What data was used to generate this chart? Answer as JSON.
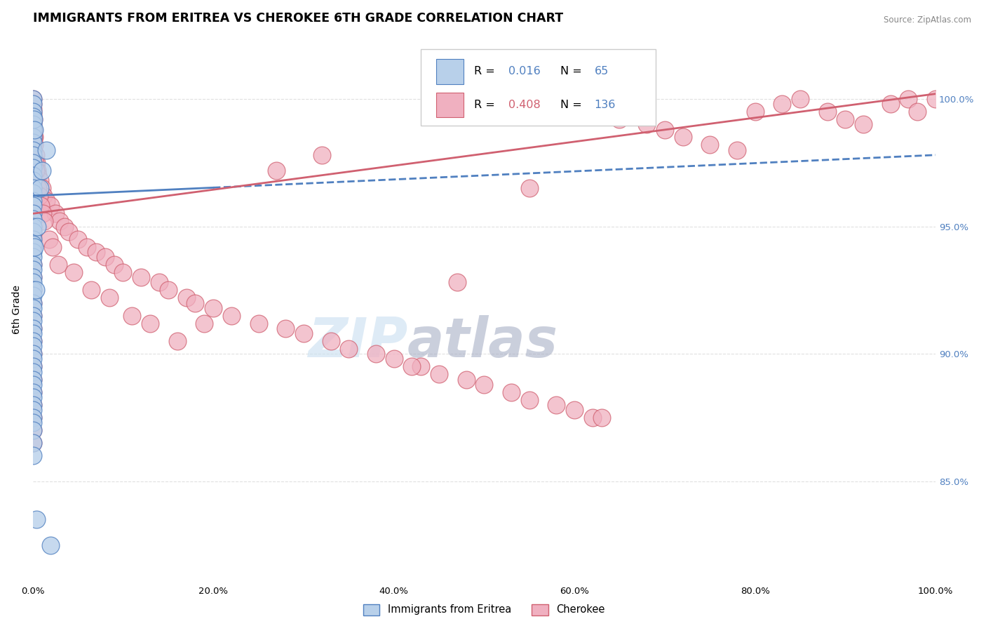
{
  "title": "IMMIGRANTS FROM ERITREA VS CHEROKEE 6TH GRADE CORRELATION CHART",
  "source": "Source: ZipAtlas.com",
  "xlabel_blue": "Immigrants from Eritrea",
  "xlabel_pink": "Cherokee",
  "ylabel": "6th Grade",
  "xlim": [
    0.0,
    100.0
  ],
  "ylim": [
    81.0,
    102.5
  ],
  "yticks": [
    85.0,
    90.0,
    95.0,
    100.0
  ],
  "blue_R": 0.016,
  "blue_N": 65,
  "pink_R": 0.408,
  "pink_N": 136,
  "blue_face": "#b8d0ea",
  "blue_edge": "#5080c0",
  "pink_face": "#f0b0c0",
  "pink_edge": "#d06070",
  "blue_line_color": "#5080c0",
  "pink_line_color": "#d06070",
  "grid_color": "#e0e0e0",
  "background": "#ffffff",
  "blue_scatter_x": [
    0.0,
    0.0,
    0.0,
    0.0,
    0.0,
    0.0,
    0.0,
    0.0,
    0.0,
    0.0,
    0.0,
    0.0,
    0.0,
    0.0,
    0.0,
    0.0,
    0.0,
    0.0,
    0.0,
    0.0,
    0.0,
    0.0,
    0.0,
    0.0,
    0.0,
    0.0,
    0.0,
    0.0,
    0.0,
    0.0,
    0.0,
    0.0,
    0.0,
    0.0,
    0.0,
    0.0,
    0.0,
    0.0,
    0.0,
    0.0,
    0.0,
    0.0,
    0.0,
    0.0,
    0.0,
    0.0,
    0.0,
    0.0,
    0.0,
    0.0,
    0.0,
    0.0,
    0.0,
    0.0,
    0.0,
    0.2,
    0.3,
    0.5,
    0.8,
    1.0,
    1.5,
    2.0,
    0.1,
    0.15,
    0.4
  ],
  "blue_scatter_y": [
    100.0,
    99.8,
    99.5,
    99.3,
    99.0,
    98.8,
    98.5,
    98.3,
    98.0,
    97.8,
    97.5,
    97.3,
    97.0,
    96.8,
    96.5,
    96.3,
    96.0,
    95.8,
    95.5,
    95.3,
    95.0,
    94.8,
    94.5,
    94.3,
    94.0,
    93.8,
    93.5,
    93.3,
    93.0,
    92.8,
    92.5,
    92.3,
    92.0,
    91.8,
    91.5,
    91.3,
    91.0,
    90.8,
    90.5,
    90.3,
    90.0,
    89.8,
    89.5,
    89.3,
    89.0,
    88.8,
    88.5,
    88.3,
    88.0,
    87.8,
    87.5,
    87.3,
    87.0,
    86.5,
    86.0,
    94.2,
    92.5,
    95.0,
    96.5,
    97.2,
    98.0,
    82.5,
    99.2,
    98.8,
    83.5
  ],
  "pink_scatter_x": [
    0.0,
    0.0,
    0.0,
    0.0,
    0.0,
    0.0,
    0.0,
    0.0,
    0.0,
    0.0,
    0.0,
    0.0,
    0.0,
    0.0,
    0.0,
    0.0,
    0.0,
    0.0,
    0.0,
    0.0,
    0.0,
    0.0,
    0.0,
    0.0,
    0.0,
    0.0,
    0.0,
    0.0,
    0.0,
    0.0,
    0.05,
    0.1,
    0.15,
    0.2,
    0.3,
    0.4,
    0.5,
    0.6,
    0.8,
    1.0,
    1.2,
    1.5,
    2.0,
    2.5,
    3.0,
    3.5,
    4.0,
    5.0,
    6.0,
    7.0,
    8.0,
    9.0,
    10.0,
    12.0,
    14.0,
    15.0,
    17.0,
    18.0,
    20.0,
    22.0,
    25.0,
    28.0,
    30.0,
    33.0,
    35.0,
    38.0,
    40.0,
    43.0,
    45.0,
    48.0,
    50.0,
    53.0,
    55.0,
    58.0,
    60.0,
    62.0,
    65.0,
    68.0,
    70.0,
    72.0,
    75.0,
    78.0,
    80.0,
    83.0,
    85.0,
    88.0,
    90.0,
    92.0,
    95.0,
    97.0,
    98.0,
    100.0,
    0.08,
    0.12,
    0.25,
    0.35,
    0.55,
    0.7,
    0.9,
    1.1,
    1.3,
    1.8,
    2.2,
    2.8,
    4.5,
    6.5,
    8.5,
    11.0,
    13.0,
    16.0,
    0.0,
    0.0,
    0.0,
    0.0,
    0.0,
    0.0,
    0.0,
    0.0,
    0.0,
    0.0,
    0.0,
    0.0,
    0.0,
    0.0,
    0.0,
    0.0,
    0.0,
    0.0,
    19.0,
    42.0,
    27.0,
    63.0,
    55.0,
    47.0,
    32.0,
    0.0
  ],
  "pink_scatter_y": [
    100.0,
    99.8,
    99.6,
    99.4,
    99.2,
    99.0,
    98.8,
    98.6,
    98.4,
    98.2,
    98.0,
    97.8,
    97.6,
    97.4,
    97.2,
    97.0,
    96.8,
    96.6,
    96.4,
    96.2,
    96.0,
    95.8,
    95.6,
    95.4,
    95.2,
    95.0,
    94.8,
    94.6,
    94.4,
    94.2,
    99.5,
    98.8,
    98.5,
    98.2,
    97.8,
    97.5,
    97.2,
    97.0,
    96.8,
    96.5,
    96.2,
    96.0,
    95.8,
    95.5,
    95.2,
    95.0,
    94.8,
    94.5,
    94.2,
    94.0,
    93.8,
    93.5,
    93.2,
    93.0,
    92.8,
    92.5,
    92.2,
    92.0,
    91.8,
    91.5,
    91.2,
    91.0,
    90.8,
    90.5,
    90.2,
    90.0,
    89.8,
    89.5,
    89.2,
    89.0,
    88.8,
    88.5,
    88.2,
    88.0,
    87.8,
    87.5,
    99.2,
    99.0,
    98.8,
    98.5,
    98.2,
    98.0,
    99.5,
    99.8,
    100.0,
    99.5,
    99.2,
    99.0,
    99.8,
    100.0,
    99.5,
    100.0,
    99.2,
    98.5,
    97.5,
    97.2,
    96.5,
    96.2,
    95.8,
    95.5,
    95.2,
    94.5,
    94.2,
    93.5,
    93.2,
    92.5,
    92.2,
    91.5,
    91.2,
    90.5,
    93.5,
    93.0,
    92.5,
    92.0,
    91.5,
    91.0,
    90.5,
    90.0,
    89.5,
    89.0,
    88.5,
    88.0,
    87.5,
    87.0,
    86.5,
    96.5,
    97.5,
    96.8,
    91.2,
    89.5,
    97.2,
    87.5,
    96.5,
    92.8,
    97.8,
    97.0
  ],
  "blue_trendline_x": [
    0.0,
    100.0
  ],
  "blue_trendline_y": [
    96.2,
    97.8
  ],
  "pink_trendline_x": [
    0.0,
    100.0
  ],
  "pink_trendline_y": [
    95.5,
    100.2
  ],
  "watermark_zip_color": "#c8dff0",
  "watermark_atlas_color": "#a0a8c0",
  "title_fontsize": 12.5,
  "source_fontsize": 8.5,
  "tick_fontsize": 9.5,
  "ylabel_fontsize": 10
}
